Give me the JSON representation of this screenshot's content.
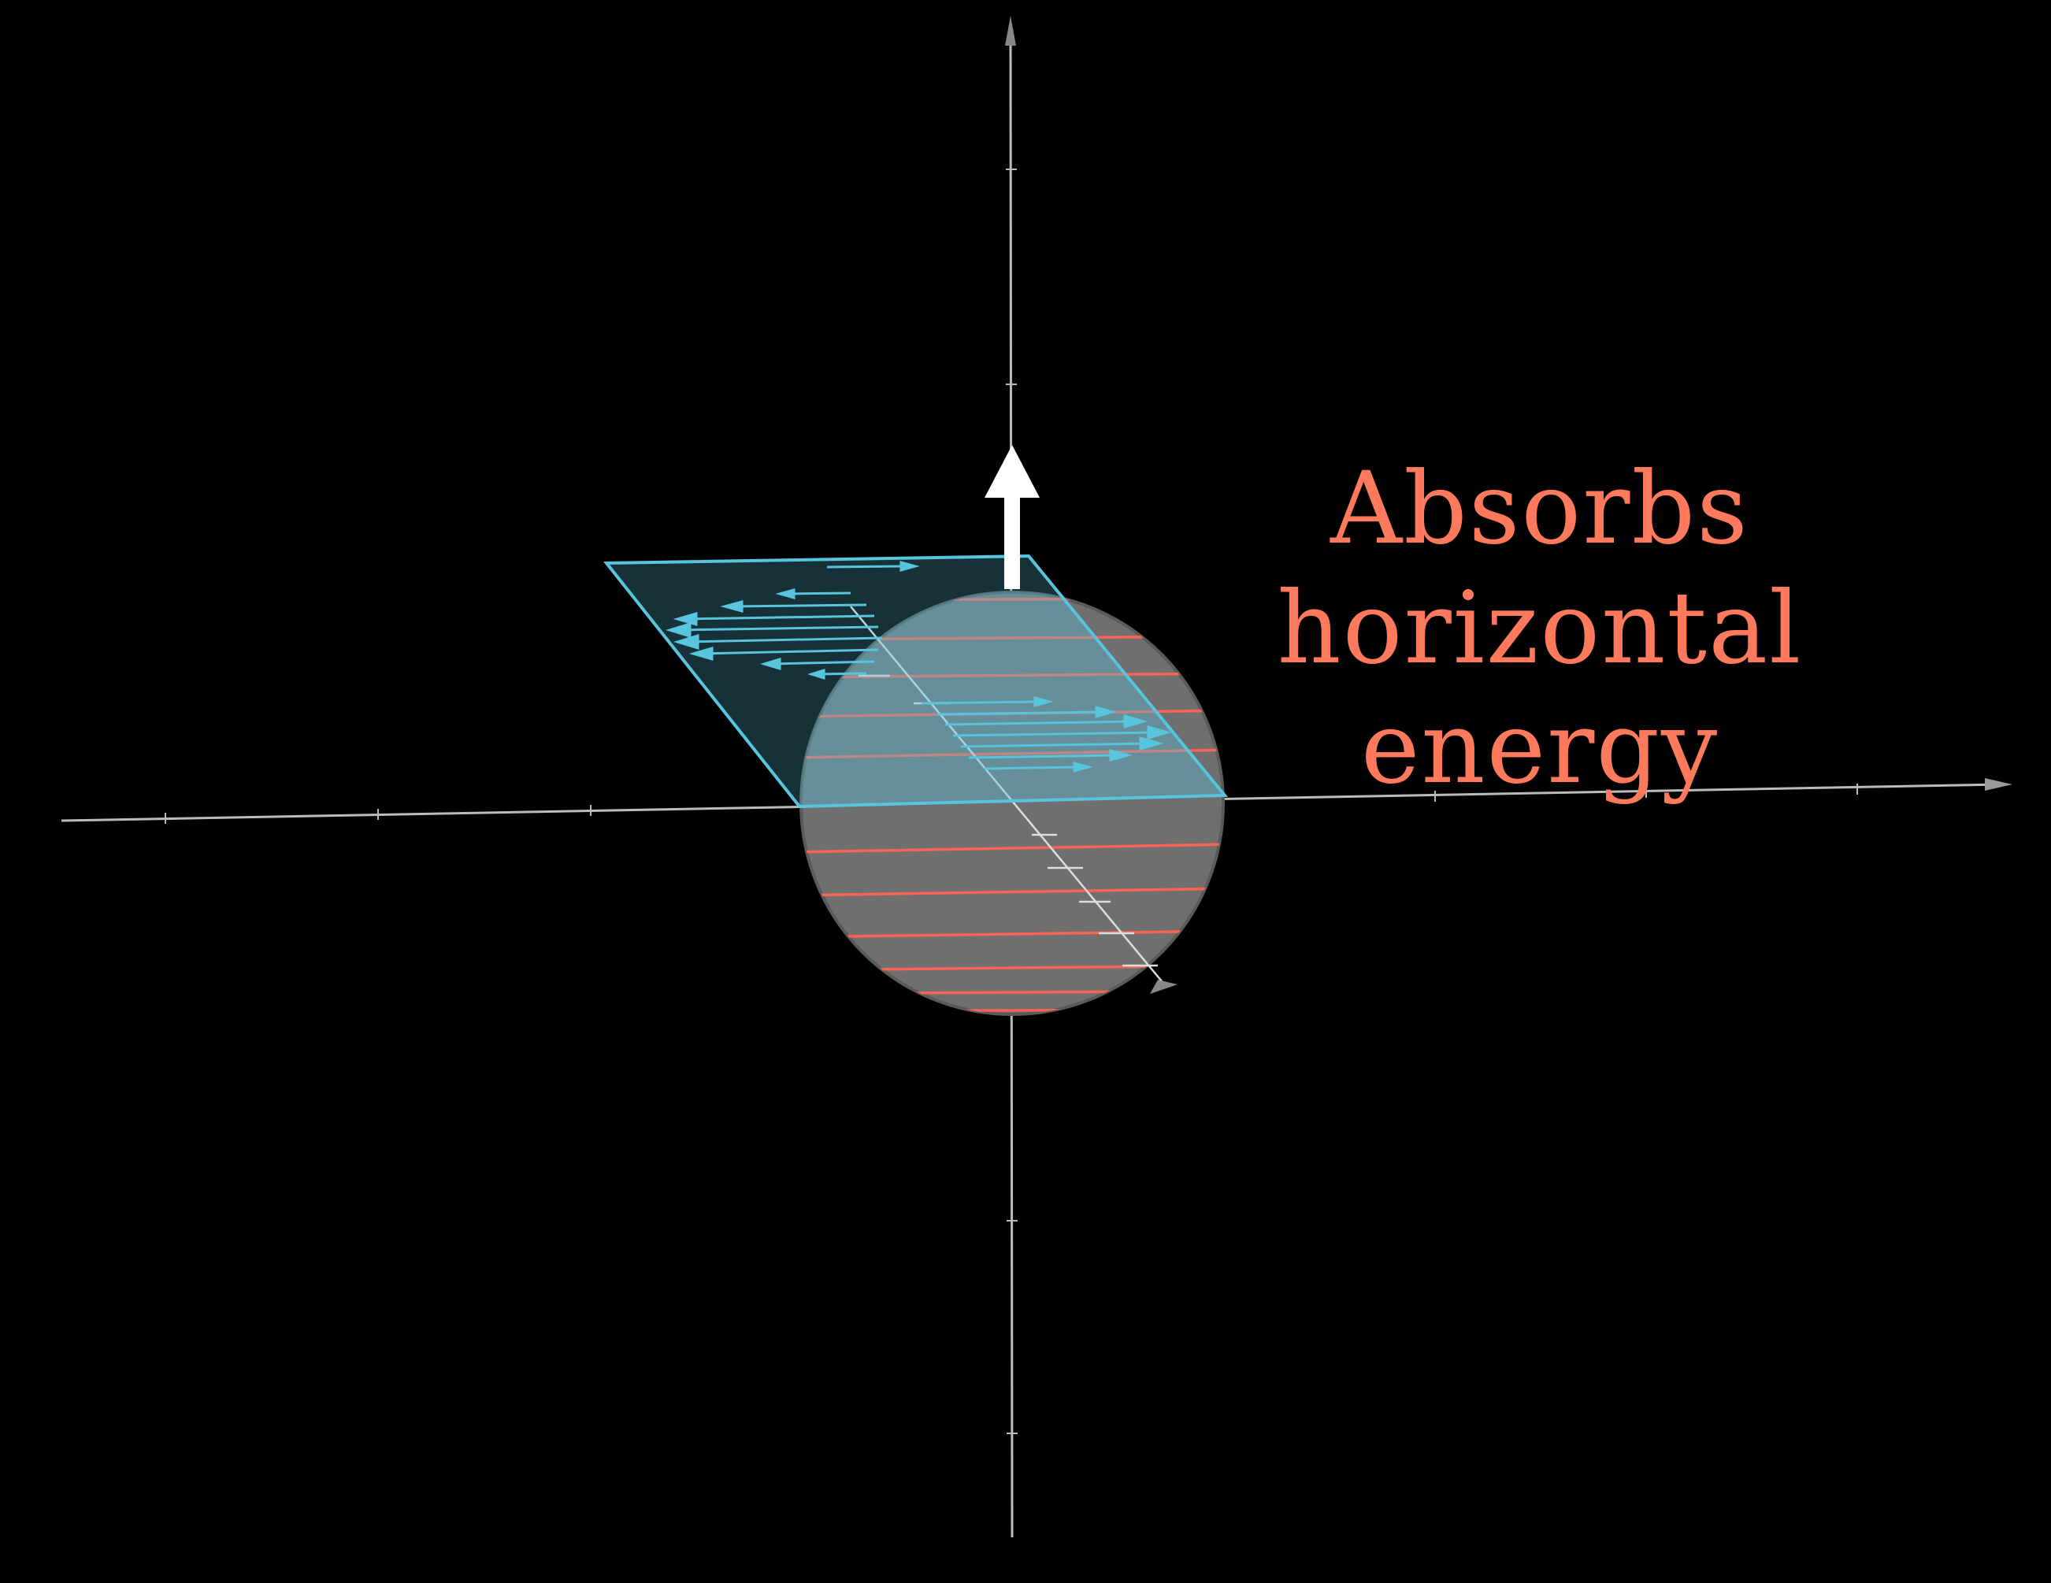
{
  "annotation": {
    "line1": "Absorbs horizontal",
    "line2": "energy"
  },
  "colors": {
    "background": "#000000",
    "axis": "#bbbbbb",
    "plane": "#58c4dd",
    "planeFill": "#1d3a47",
    "sphereFill": "#6f6f6f",
    "sphereRings": "#fc6255",
    "label": "#ff7a5c",
    "upArrow": "#ffffff"
  },
  "icons": [
    "up-arrow-icon",
    "axis-arrowhead-icon"
  ]
}
